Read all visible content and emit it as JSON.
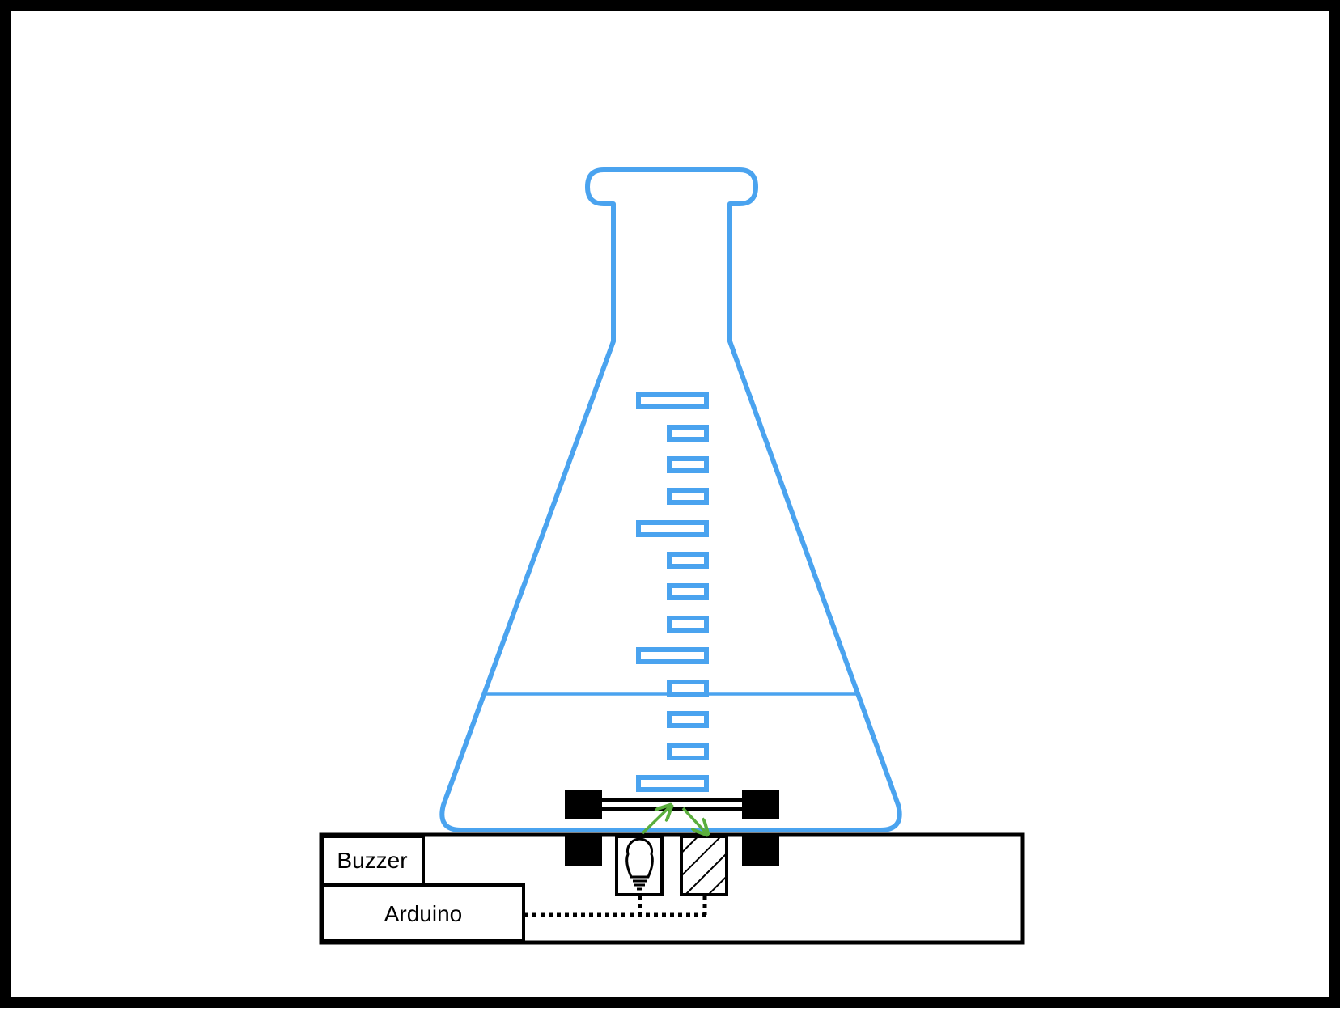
{
  "colors": {
    "flask": "#4aa3ef",
    "outline": "#000000",
    "arrow": "#5aae3c",
    "background": "#ffffff"
  },
  "labels": {
    "buzzer": "Buzzer",
    "arduino": "Arduino"
  },
  "icons": {
    "light": "lightbulb-icon",
    "sensor": "hatched-sensor-icon"
  }
}
